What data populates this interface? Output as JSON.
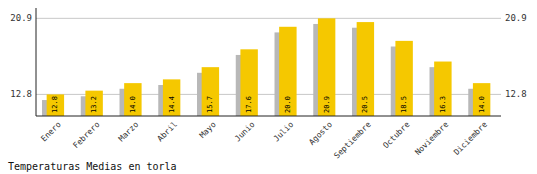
{
  "chart_data": {
    "type": "bar",
    "title": "Temperaturas Medias en torla",
    "categories": [
      "Enero",
      "Febrero",
      "Marzo",
      "Abril",
      "Mayo",
      "Junio",
      "Julio",
      "Agosto",
      "Septiembre",
      "Octubre",
      "Noviembre",
      "Diciembre"
    ],
    "series": [
      {
        "color": "#F5C800",
        "data_labels": true,
        "values": [
          12.8,
          13.2,
          14.0,
          14.4,
          15.7,
          17.6,
          20.0,
          20.9,
          20.5,
          18.5,
          16.3,
          14.0
        ],
        "value_labels": [
          "12.8",
          "13.2",
          "14.0",
          "14.4",
          "15.7",
          "17.6",
          "20.0",
          "20.9",
          "20.5",
          "18.5",
          "16.3",
          "14.0"
        ]
      },
      {
        "color": "#B8B8B8",
        "values": [
          12.2,
          12.6,
          13.4,
          13.8,
          15.1,
          17.0,
          19.4,
          20.3,
          19.9,
          17.9,
          15.7,
          13.4
        ]
      }
    ],
    "ylim": [
      10.5,
      22.0
    ],
    "yticks": [
      12.8,
      20.9
    ],
    "grid": true
  }
}
